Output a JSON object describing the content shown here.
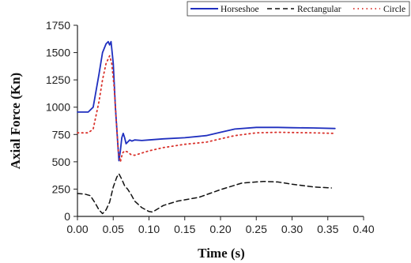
{
  "chart_data": {
    "type": "line",
    "title": "",
    "xlabel": "Time (s)",
    "ylabel": "Axial Force (Kn)",
    "xlim": [
      0.0,
      0.4
    ],
    "ylim": [
      0,
      1750
    ],
    "xticks": [
      "0.00",
      "0.05",
      "0.10",
      "0.15",
      "0.20",
      "0.25",
      "0.30",
      "0.35",
      "0.40"
    ],
    "yticks": [
      "0",
      "250",
      "500",
      "750",
      "1000",
      "1250",
      "1500",
      "1750"
    ],
    "grid": false,
    "legend_position": "top-right",
    "series": [
      {
        "name": "Horseshoe",
        "color": "#1f2fbf",
        "style": "solid",
        "x": [
          0.0,
          0.015,
          0.022,
          0.03,
          0.035,
          0.04,
          0.043,
          0.045,
          0.047,
          0.05,
          0.053,
          0.056,
          0.058,
          0.06,
          0.062,
          0.064,
          0.066,
          0.068,
          0.07,
          0.073,
          0.076,
          0.08,
          0.09,
          0.1,
          0.12,
          0.15,
          0.18,
          0.2,
          0.22,
          0.25,
          0.28,
          0.3,
          0.33,
          0.36
        ],
        "y": [
          955,
          955,
          1000,
          1300,
          1500,
          1580,
          1600,
          1570,
          1600,
          1400,
          1000,
          700,
          510,
          600,
          720,
          760,
          720,
          665,
          680,
          700,
          690,
          700,
          695,
          700,
          710,
          720,
          740,
          770,
          800,
          815,
          815,
          812,
          810,
          805
        ]
      },
      {
        "name": "Rectangular",
        "color": "#111111",
        "style": "dashed",
        "x": [
          0.0,
          0.01,
          0.018,
          0.025,
          0.03,
          0.035,
          0.04,
          0.045,
          0.05,
          0.055,
          0.058,
          0.062,
          0.066,
          0.07,
          0.075,
          0.08,
          0.09,
          0.1,
          0.105,
          0.11,
          0.12,
          0.14,
          0.17,
          0.2,
          0.23,
          0.26,
          0.28,
          0.3,
          0.33,
          0.355
        ],
        "y": [
          210,
          205,
          190,
          120,
          60,
          25,
          60,
          130,
          270,
          360,
          390,
          340,
          280,
          250,
          200,
          140,
          80,
          45,
          40,
          60,
          100,
          140,
          175,
          245,
          305,
          320,
          315,
          295,
          270,
          260
        ]
      },
      {
        "name": "Circle",
        "color": "#d9312b",
        "style": "dotted",
        "x": [
          0.0,
          0.015,
          0.022,
          0.03,
          0.035,
          0.04,
          0.045,
          0.048,
          0.051,
          0.054,
          0.057,
          0.06,
          0.063,
          0.066,
          0.07,
          0.075,
          0.08,
          0.09,
          0.1,
          0.12,
          0.15,
          0.18,
          0.2,
          0.22,
          0.25,
          0.28,
          0.3,
          0.33,
          0.36
        ],
        "y": [
          765,
          765,
          800,
          1050,
          1250,
          1400,
          1470,
          1400,
          1200,
          900,
          600,
          500,
          580,
          600,
          590,
          565,
          560,
          580,
          600,
          630,
          660,
          680,
          710,
          740,
          765,
          770,
          768,
          765,
          760
        ]
      }
    ]
  }
}
